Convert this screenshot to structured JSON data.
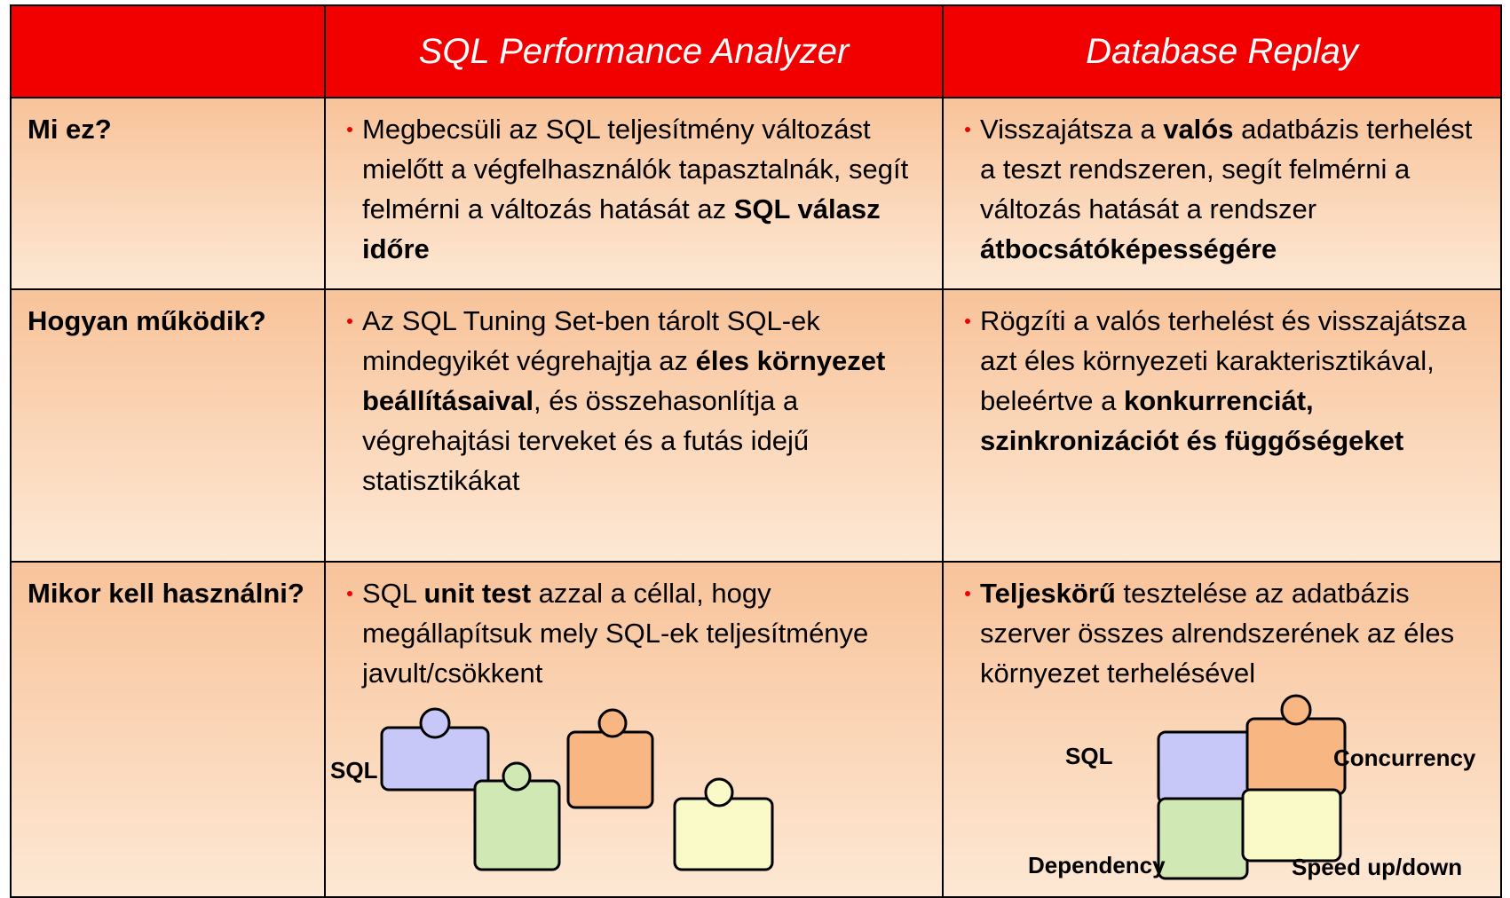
{
  "table": {
    "header": [
      "SQL Performance Analyzer",
      "Database Replay"
    ],
    "rows": [
      {
        "label": "Mi ez?",
        "cells": [
          [
            {
              "text": "Megbecsüli az SQL teljesítmény változást mielőtt a végfelhasználók tapasztalnák, segít felmérni a változás hatását az "
            },
            {
              "text": "SQL válasz időre",
              "bold": true
            }
          ],
          [
            {
              "text": "Visszajátsza a "
            },
            {
              "text": "valós",
              "bold": true
            },
            {
              "text": " adatbázis terhelést a teszt rendszeren, segít felmérni a változás hatását a rendszer "
            },
            {
              "text": "átbocsátóképességére",
              "bold": true
            }
          ]
        ]
      },
      {
        "label": "Hogyan működik?",
        "cells": [
          [
            {
              "text": "Az SQL Tuning Set-ben tárolt SQL-ek mindegyikét végrehajtja az "
            },
            {
              "text": "éles környezet beállításaival",
              "bold": true
            },
            {
              "text": ", és összehasonlítja a végrehajtási terveket és a futás idejű statisztikákat"
            }
          ],
          [
            {
              "text": "Rögzíti a valós terhelést és visszajátsza azt éles környezeti karakterisztikával, beleértve a "
            },
            {
              "text": "konkurrenciát, szinkronizációt és függőségeket",
              "bold": true
            }
          ]
        ]
      },
      {
        "label": "Mikor kell használni?",
        "cells": [
          [
            {
              "text": "SQL "
            },
            {
              "text": "unit test",
              "bold": true
            },
            {
              "text": " azzal a céllal, hogy megállapítsuk mely SQL-ek teljesítménye javult/csökkent"
            }
          ],
          [
            {
              "text": "Teljeskörű",
              "bold": true
            },
            {
              "text": " tesztelése az adatbázis szerver összes alrendszerének az éles környezet terhelésével"
            }
          ]
        ]
      }
    ]
  },
  "illustrations": {
    "left": {
      "labels": [
        "SQL"
      ]
    },
    "right": {
      "labels": [
        "SQL",
        "Concurrency",
        "Dependency",
        "Speed up/down"
      ]
    }
  }
}
